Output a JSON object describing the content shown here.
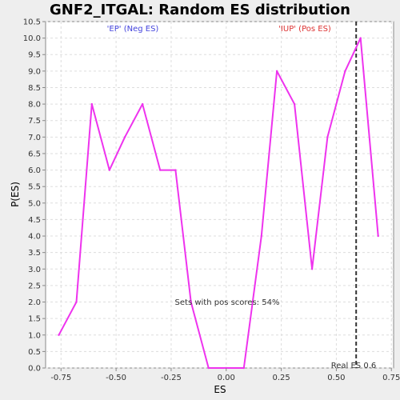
{
  "chart_data": {
    "type": "line",
    "title": "GNF2_ITGAL: Random ES distribution",
    "xlabel": "ES",
    "ylabel": "P(ES)",
    "xlim": [
      -0.82,
      0.76
    ],
    "ylim": [
      0,
      10.5
    ],
    "x_ticks": [
      -0.75,
      -0.5,
      -0.25,
      0.0,
      0.25,
      0.5,
      0.75
    ],
    "x_tick_labels": [
      "-0.75",
      "-0.50",
      "-0.25",
      "0.00",
      "0.25",
      "0.50",
      "0.75"
    ],
    "y_ticks": [
      0.0,
      0.5,
      1.0,
      1.5,
      2.0,
      2.5,
      3.0,
      3.5,
      4.0,
      4.5,
      5.0,
      5.5,
      6.0,
      6.5,
      7.0,
      7.5,
      8.0,
      8.5,
      9.0,
      9.5,
      10.0,
      10.5
    ],
    "y_tick_labels": [
      "0.0",
      "0.5",
      "1.0",
      "1.5",
      "2.0",
      "2.5",
      "3.0",
      "3.5",
      "4.0",
      "4.5",
      "5.0",
      "5.5",
      "6.0",
      "6.5",
      "7.0",
      "7.5",
      "8.0",
      "8.5",
      "9.0",
      "9.5",
      "10.0",
      "10.5"
    ],
    "grid": true,
    "series": [
      {
        "color": "#ee33ee",
        "x": [
          -0.76,
          -0.68,
          -0.61,
          -0.53,
          -0.46,
          -0.38,
          -0.3,
          -0.23,
          -0.16,
          -0.08,
          0.0,
          0.08,
          0.16,
          0.23,
          0.31,
          0.39,
          0.46,
          0.54,
          0.61,
          0.69
        ],
        "y": [
          1.0,
          2.0,
          8.0,
          6.0,
          7.0,
          8.0,
          6.0,
          6.0,
          2.0,
          0.0,
          0.0,
          0.0,
          4.0,
          9.0,
          8.0,
          3.0,
          7.0,
          9.0,
          10.0,
          4.0
        ]
      }
    ],
    "reference_line": {
      "x": 0.59,
      "label": "Real ES 0.6",
      "color": "#333333"
    },
    "annotations": [
      {
        "text": "'EP' (Neg ES)",
        "color": "#4444dd"
      },
      {
        "text": "'IUP' (Pos ES)",
        "color": "#dd3333"
      },
      {
        "text": "Sets with pos scores: 54%",
        "color": "#333333"
      }
    ]
  }
}
